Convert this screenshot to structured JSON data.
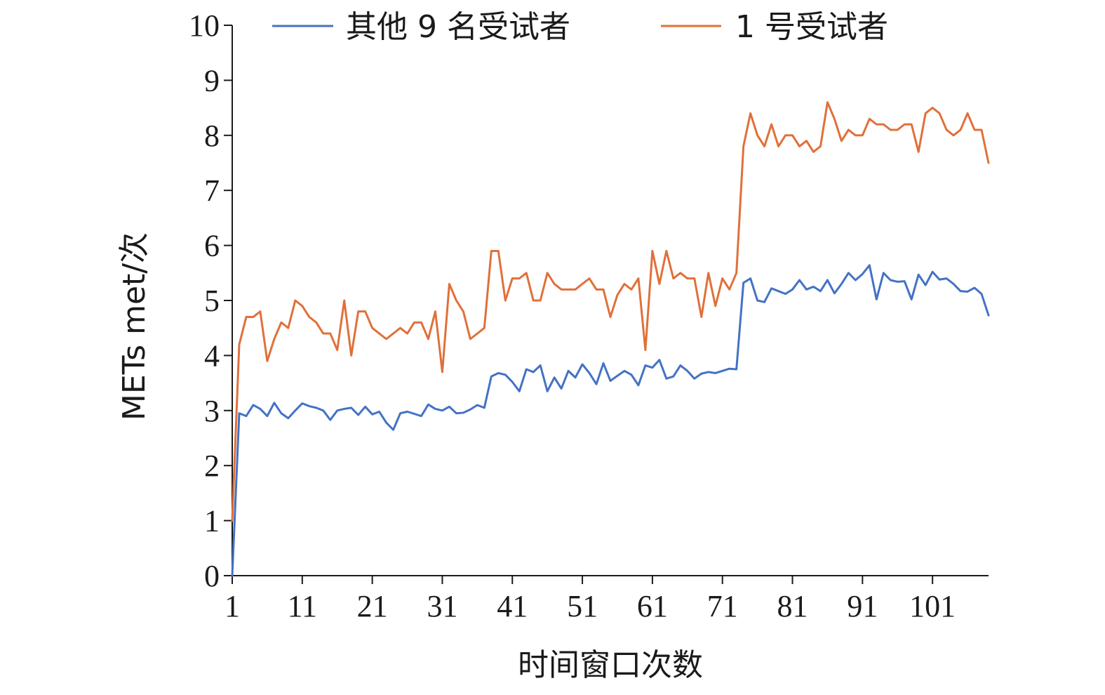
{
  "chart_data": {
    "type": "line",
    "xlabel": "时间窗口次数",
    "ylabel": "METs met/次",
    "xlim": [
      1,
      109
    ],
    "ylim": [
      0,
      10
    ],
    "x_ticks": [
      1,
      11,
      21,
      31,
      41,
      51,
      61,
      71,
      81,
      91,
      101
    ],
    "y_ticks": [
      0,
      1,
      2,
      3,
      4,
      5,
      6,
      7,
      8,
      9,
      10
    ],
    "grid": false,
    "legend_position": "top",
    "x": [
      1,
      2,
      3,
      4,
      5,
      6,
      7,
      8,
      9,
      10,
      11,
      12,
      13,
      14,
      15,
      16,
      17,
      18,
      19,
      20,
      21,
      22,
      23,
      24,
      25,
      26,
      27,
      28,
      29,
      30,
      31,
      32,
      33,
      34,
      35,
      36,
      37,
      38,
      39,
      40,
      41,
      42,
      43,
      44,
      45,
      46,
      47,
      48,
      49,
      50,
      51,
      52,
      53,
      54,
      55,
      56,
      57,
      58,
      59,
      60,
      61,
      62,
      63,
      64,
      65,
      66,
      67,
      68,
      69,
      70,
      71,
      72,
      73,
      74,
      75,
      76,
      77,
      78,
      79,
      80,
      81,
      82,
      83,
      84,
      85,
      86,
      87,
      88,
      89,
      90,
      91,
      92,
      93,
      94,
      95,
      96,
      97,
      98,
      99,
      100,
      101,
      102,
      103,
      104,
      105,
      106,
      107,
      108,
      109
    ],
    "series": [
      {
        "name": "其他 9 名受试者",
        "color": "#4472c4",
        "values": [
          0,
          2.95,
          2.9,
          3.1,
          3.03,
          2.9,
          3.14,
          2.95,
          2.86,
          3.0,
          3.13,
          3.08,
          3.05,
          3.0,
          2.83,
          3.0,
          3.03,
          3.05,
          2.92,
          3.07,
          2.93,
          2.98,
          2.78,
          2.65,
          2.95,
          2.98,
          2.94,
          2.9,
          3.11,
          3.03,
          3.0,
          3.07,
          2.95,
          2.96,
          3.02,
          3.1,
          3.05,
          3.62,
          3.68,
          3.65,
          3.52,
          3.35,
          3.75,
          3.7,
          3.82,
          3.35,
          3.6,
          3.4,
          3.72,
          3.6,
          3.84,
          3.68,
          3.48,
          3.86,
          3.54,
          3.63,
          3.72,
          3.65,
          3.46,
          3.82,
          3.78,
          3.92,
          3.58,
          3.62,
          3.82,
          3.72,
          3.58,
          3.67,
          3.7,
          3.68,
          3.72,
          3.76,
          3.75,
          5.32,
          5.4,
          5.0,
          4.97,
          5.22,
          5.17,
          5.12,
          5.2,
          5.37,
          5.2,
          5.25,
          5.17,
          5.37,
          5.13,
          5.3,
          5.5,
          5.37,
          5.48,
          5.64,
          5.02,
          5.5,
          5.37,
          5.34,
          5.35,
          5.02,
          5.47,
          5.28,
          5.52,
          5.38,
          5.4,
          5.3,
          5.17,
          5.16,
          5.23,
          5.12,
          4.73
        ]
      },
      {
        "name": "1 号受试者",
        "color": "#e0703a",
        "values": [
          1.0,
          4.2,
          4.7,
          4.7,
          4.8,
          3.9,
          4.3,
          4.6,
          4.5,
          5.0,
          4.9,
          4.7,
          4.6,
          4.4,
          4.4,
          4.1,
          5.0,
          4.0,
          4.8,
          4.8,
          4.5,
          4.4,
          4.3,
          4.4,
          4.5,
          4.4,
          4.6,
          4.6,
          4.3,
          4.8,
          3.7,
          5.3,
          5.0,
          4.8,
          4.3,
          4.4,
          4.5,
          5.9,
          5.9,
          5.0,
          5.4,
          5.4,
          5.5,
          5.0,
          5.0,
          5.5,
          5.3,
          5.2,
          5.2,
          5.2,
          5.3,
          5.4,
          5.2,
          5.2,
          4.7,
          5.1,
          5.3,
          5.2,
          5.4,
          4.1,
          5.9,
          5.3,
          5.9,
          5.4,
          5.5,
          5.4,
          5.4,
          4.7,
          5.5,
          4.9,
          5.4,
          5.2,
          5.5,
          7.8,
          8.4,
          8.0,
          7.8,
          8.2,
          7.8,
          8.0,
          8.0,
          7.8,
          7.9,
          7.7,
          7.8,
          8.6,
          8.3,
          7.9,
          8.1,
          8.0,
          8.0,
          8.3,
          8.2,
          8.2,
          8.1,
          8.1,
          8.2,
          8.2,
          7.7,
          8.4,
          8.5,
          8.4,
          8.1,
          8.0,
          8.1,
          8.4,
          8.1,
          8.1,
          7.5
        ]
      }
    ]
  }
}
